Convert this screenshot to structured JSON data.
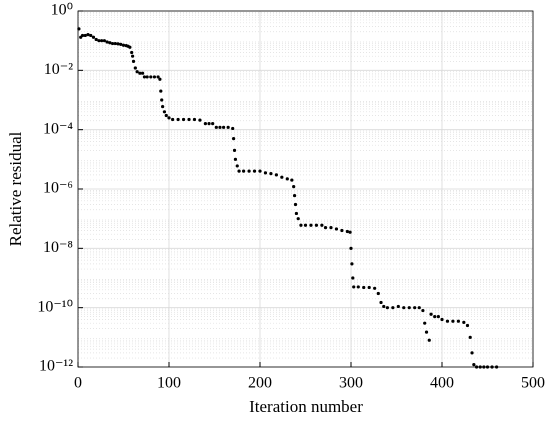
{
  "chart_data": {
    "type": "scatter",
    "xlabel": "Iteration number",
    "ylabel": "Relative residual",
    "log_y": true,
    "grid": true,
    "color": "#000000",
    "xlim": [
      0,
      500
    ],
    "xticks": [
      0,
      100,
      200,
      300,
      400,
      500
    ],
    "ylim": [
      1e-12,
      1
    ],
    "yticks": [
      {
        "value": 1,
        "label": "10⁰"
      },
      {
        "value": 0.01,
        "label": "10⁻²"
      },
      {
        "value": 0.0001,
        "label": "10⁻⁴"
      },
      {
        "value": 1e-06,
        "label": "10⁻⁶"
      },
      {
        "value": 1e-08,
        "label": "10⁻⁸"
      },
      {
        "value": 1e-10,
        "label": "10⁻¹⁰"
      },
      {
        "value": 1e-12,
        "label": "10⁻¹²"
      }
    ],
    "x": [
      1,
      3,
      5,
      8,
      11,
      14,
      17,
      20,
      23,
      26,
      29,
      32,
      35,
      38,
      41,
      44,
      47,
      50,
      53,
      55,
      57,
      59,
      60,
      61,
      63,
      65,
      68,
      71,
      73,
      76,
      80,
      84,
      88,
      90,
      91,
      92,
      93,
      95,
      97,
      100,
      104,
      110,
      116,
      122,
      128,
      134,
      140,
      144,
      148,
      152,
      156,
      160,
      165,
      170,
      171,
      172,
      173,
      175,
      177,
      182,
      188,
      194,
      200,
      206,
      212,
      218,
      224,
      230,
      235,
      237,
      238,
      239,
      240,
      242,
      245,
      250,
      256,
      262,
      268,
      272,
      278,
      284,
      290,
      296,
      299,
      300,
      301,
      302,
      303,
      308,
      314,
      320,
      326,
      330,
      333,
      336,
      340,
      346,
      352,
      358,
      364,
      370,
      375,
      379,
      381,
      383,
      386,
      388,
      392,
      396,
      400,
      406,
      412,
      418,
      424,
      428,
      431,
      433,
      435,
      438,
      442,
      446,
      450,
      455,
      460
    ],
    "values": [
      0.25,
      0.13,
      0.15,
      0.15,
      0.16,
      0.15,
      0.13,
      0.11,
      0.1,
      0.1,
      0.1,
      0.09,
      0.085,
      0.08,
      0.08,
      0.078,
      0.075,
      0.07,
      0.068,
      0.065,
      0.06,
      0.04,
      0.03,
      0.02,
      0.012,
      0.009,
      0.008,
      0.008,
      0.006,
      0.006,
      0.006,
      0.006,
      0.006,
      0.005,
      0.002,
      0.001,
      0.0006,
      0.0004,
      0.0003,
      0.00025,
      0.00022,
      0.00022,
      0.00022,
      0.00022,
      0.00022,
      0.00021,
      0.00016,
      0.00016,
      0.00016,
      0.00012,
      0.00012,
      0.00012,
      0.00012,
      0.00011,
      5e-05,
      2e-05,
      1e-05,
      6e-06,
      4e-06,
      4e-06,
      4e-06,
      4e-06,
      4e-06,
      3.5e-06,
      3.3e-06,
      3e-06,
      2.5e-06,
      2.2e-06,
      2e-06,
      1.2e-06,
      6e-07,
      3e-07,
      1.5e-07,
      1e-07,
      6e-08,
      6e-08,
      6e-08,
      6e-08,
      6e-08,
      5e-08,
      5e-08,
      4.5e-08,
      4e-08,
      3.7e-08,
      3.5e-08,
      1e-08,
      3e-09,
      1e-09,
      5e-10,
      5e-10,
      4.8e-10,
      4.8e-10,
      4.5e-10,
      3e-10,
      1.5e-10,
      1.1e-10,
      1e-10,
      1e-10,
      1.1e-10,
      1e-10,
      1e-10,
      1e-10,
      1e-10,
      8e-11,
      3e-11,
      1.5e-11,
      8e-12,
      6e-11,
      5e-11,
      5e-11,
      4e-11,
      3.5e-11,
      3.5e-11,
      3.5e-11,
      3.2e-11,
      2.5e-11,
      1e-11,
      3e-12,
      1.2e-12,
      1e-12,
      1e-12,
      1e-12,
      1e-12,
      1e-12,
      1e-12
    ]
  }
}
